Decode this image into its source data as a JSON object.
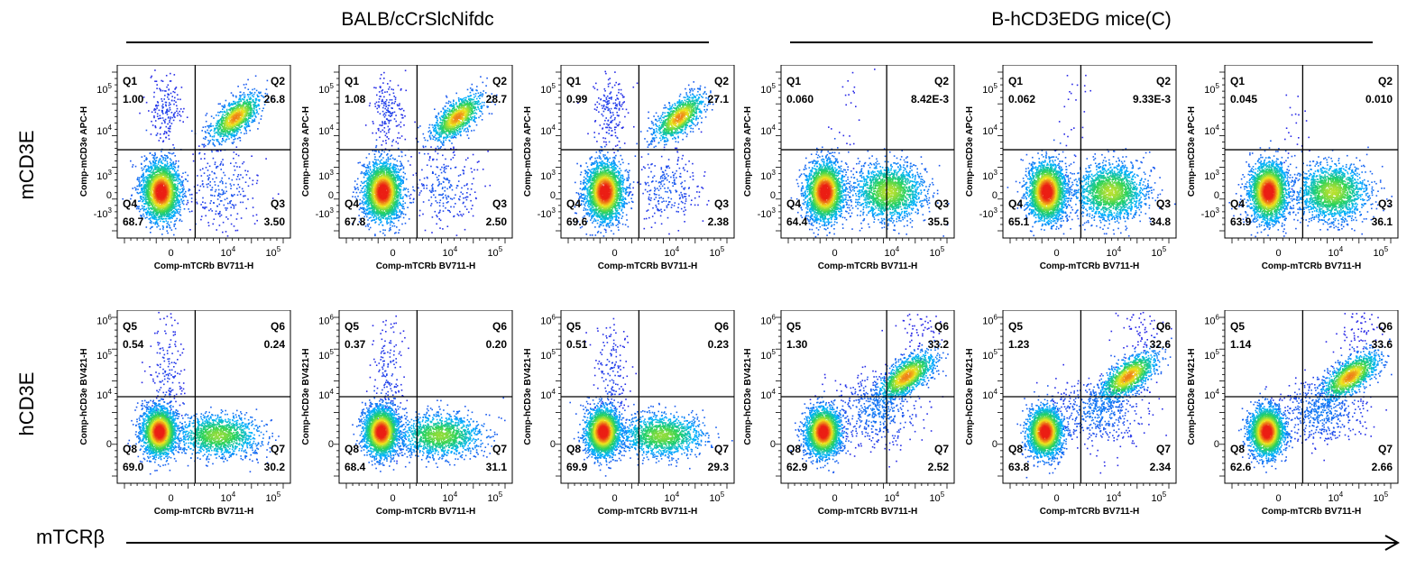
{
  "group_titles": [
    "BALB/cCrSlcNifdc",
    "B-hCD3EDG mice(C)"
  ],
  "row_labels": [
    "mCD3E",
    "hCD3E"
  ],
  "x_axis_label": "mTCRβ",
  "chart_data": [
    {
      "type": "scatter",
      "row": "mCD3E",
      "group": "BALB/cCrSlcNifdc",
      "xlabel": "Comp-mTCRb BV711-H",
      "ylabel": "Comp-mCD3e APC-H",
      "x_ticks": [
        "0",
        "10^4",
        "10^5"
      ],
      "y_ticks": [
        "-10^3",
        "0",
        "10^3",
        "10^4",
        "10^5"
      ],
      "quadrants": [
        {
          "name": "Q1",
          "value": "1.00"
        },
        {
          "name": "Q2",
          "value": "26.8"
        },
        {
          "name": "Q3",
          "value": "3.50"
        },
        {
          "name": "Q4",
          "value": "68.7"
        }
      ]
    },
    {
      "type": "scatter",
      "row": "mCD3E",
      "group": "BALB/cCrSlcNifdc",
      "xlabel": "Comp-mTCRb BV711-H",
      "ylabel": "Comp-mCD3e APC-H",
      "x_ticks": [
        "0",
        "10^4",
        "10^5"
      ],
      "y_ticks": [
        "-10^3",
        "0",
        "10^3",
        "10^4",
        "10^5"
      ],
      "quadrants": [
        {
          "name": "Q1",
          "value": "1.08"
        },
        {
          "name": "Q2",
          "value": "28.7"
        },
        {
          "name": "Q3",
          "value": "2.50"
        },
        {
          "name": "Q4",
          "value": "67.8"
        }
      ]
    },
    {
      "type": "scatter",
      "row": "mCD3E",
      "group": "BALB/cCrSlcNifdc",
      "xlabel": "Comp-mTCRb BV711-H",
      "ylabel": "Comp-mCD3e APC-H",
      "x_ticks": [
        "0",
        "10^4",
        "10^5"
      ],
      "y_ticks": [
        "-10^3",
        "0",
        "10^3",
        "10^4",
        "10^5"
      ],
      "quadrants": [
        {
          "name": "Q1",
          "value": "0.99"
        },
        {
          "name": "Q2",
          "value": "27.1"
        },
        {
          "name": "Q3",
          "value": "2.38"
        },
        {
          "name": "Q4",
          "value": "69.6"
        }
      ]
    },
    {
      "type": "scatter",
      "row": "mCD3E",
      "group": "B-hCD3EDG mice(C)",
      "xlabel": "Comp-mTCRb BV711-H",
      "ylabel": "Comp-mCD3e APC-H",
      "x_ticks": [
        "0",
        "10^4",
        "10^5"
      ],
      "y_ticks": [
        "-10^3",
        "0",
        "10^3",
        "10^4",
        "10^5"
      ],
      "quadrants": [
        {
          "name": "Q1",
          "value": "0.060"
        },
        {
          "name": "Q2",
          "value": "8.42E-3"
        },
        {
          "name": "Q3",
          "value": "35.5"
        },
        {
          "name": "Q4",
          "value": "64.4"
        }
      ]
    },
    {
      "type": "scatter",
      "row": "mCD3E",
      "group": "B-hCD3EDG mice(C)",
      "xlabel": "Comp-mTCRb BV711-H",
      "ylabel": "Comp-mCD3e APC-H",
      "x_ticks": [
        "0",
        "10^4",
        "10^5"
      ],
      "y_ticks": [
        "-10^3",
        "0",
        "10^3",
        "10^4",
        "10^5"
      ],
      "quadrants": [
        {
          "name": "Q1",
          "value": "0.062"
        },
        {
          "name": "Q2",
          "value": "9.33E-3"
        },
        {
          "name": "Q3",
          "value": "34.8"
        },
        {
          "name": "Q4",
          "value": "65.1"
        }
      ]
    },
    {
      "type": "scatter",
      "row": "mCD3E",
      "group": "B-hCD3EDG mice(C)",
      "xlabel": "Comp-mTCRb BV711-H",
      "ylabel": "Comp-mCD3e APC-H",
      "x_ticks": [
        "0",
        "10^4",
        "10^5"
      ],
      "y_ticks": [
        "-10^3",
        "0",
        "10^3",
        "10^4",
        "10^5"
      ],
      "quadrants": [
        {
          "name": "Q1",
          "value": "0.045"
        },
        {
          "name": "Q2",
          "value": "0.010"
        },
        {
          "name": "Q3",
          "value": "36.1"
        },
        {
          "name": "Q4",
          "value": "63.9"
        }
      ]
    },
    {
      "type": "scatter",
      "row": "hCD3E",
      "group": "BALB/cCrSlcNifdc",
      "xlabel": "Comp-mTCRb BV711-H",
      "ylabel": "Comp-hCD3e BV421-H",
      "x_ticks": [
        "0",
        "10^4",
        "10^5"
      ],
      "y_ticks": [
        "0",
        "10^4",
        "10^5",
        "10^6"
      ],
      "quadrants": [
        {
          "name": "Q5",
          "value": "0.54"
        },
        {
          "name": "Q6",
          "value": "0.24"
        },
        {
          "name": "Q7",
          "value": "30.2"
        },
        {
          "name": "Q8",
          "value": "69.0"
        }
      ]
    },
    {
      "type": "scatter",
      "row": "hCD3E",
      "group": "BALB/cCrSlcNifdc",
      "xlabel": "Comp-mTCRb BV711-H",
      "ylabel": "Comp-hCD3e BV421-H",
      "x_ticks": [
        "0",
        "10^4",
        "10^5"
      ],
      "y_ticks": [
        "0",
        "10^4",
        "10^5",
        "10^6"
      ],
      "quadrants": [
        {
          "name": "Q5",
          "value": "0.37"
        },
        {
          "name": "Q6",
          "value": "0.20"
        },
        {
          "name": "Q7",
          "value": "31.1"
        },
        {
          "name": "Q8",
          "value": "68.4"
        }
      ]
    },
    {
      "type": "scatter",
      "row": "hCD3E",
      "group": "BALB/cCrSlcNifdc",
      "xlabel": "Comp-mTCRb BV711-H",
      "ylabel": "Comp-hCD3e BV421-H",
      "x_ticks": [
        "0",
        "10^4",
        "10^5"
      ],
      "y_ticks": [
        "0",
        "10^4",
        "10^5",
        "10^6"
      ],
      "quadrants": [
        {
          "name": "Q5",
          "value": "0.51"
        },
        {
          "name": "Q6",
          "value": "0.23"
        },
        {
          "name": "Q7",
          "value": "29.3"
        },
        {
          "name": "Q8",
          "value": "69.9"
        }
      ]
    },
    {
      "type": "scatter",
      "row": "hCD3E",
      "group": "B-hCD3EDG mice(C)",
      "xlabel": "Comp-mTCRb BV711-H",
      "ylabel": "Comp-hCD3e BV421-H",
      "x_ticks": [
        "0",
        "10^4",
        "10^5"
      ],
      "y_ticks": [
        "0",
        "10^4",
        "10^5",
        "10^6"
      ],
      "quadrants": [
        {
          "name": "Q5",
          "value": "1.30"
        },
        {
          "name": "Q6",
          "value": "33.2"
        },
        {
          "name": "Q7",
          "value": "2.52"
        },
        {
          "name": "Q8",
          "value": "62.9"
        }
      ]
    },
    {
      "type": "scatter",
      "row": "hCD3E",
      "group": "B-hCD3EDG mice(C)",
      "xlabel": "Comp-mTCRb BV711-H",
      "ylabel": "Comp-hCD3e BV421-H",
      "x_ticks": [
        "0",
        "10^4",
        "10^5"
      ],
      "y_ticks": [
        "0",
        "10^4",
        "10^5",
        "10^6"
      ],
      "quadrants": [
        {
          "name": "Q5",
          "value": "1.23"
        },
        {
          "name": "Q6",
          "value": "32.6"
        },
        {
          "name": "Q7",
          "value": "2.34"
        },
        {
          "name": "Q8",
          "value": "63.8"
        }
      ]
    },
    {
      "type": "scatter",
      "row": "hCD3E",
      "group": "B-hCD3EDG mice(C)",
      "xlabel": "Comp-mTCRb BV711-H",
      "ylabel": "Comp-hCD3e BV421-H",
      "x_ticks": [
        "0",
        "10^4",
        "10^5"
      ],
      "y_ticks": [
        "0",
        "10^4",
        "10^5",
        "10^6"
      ],
      "quadrants": [
        {
          "name": "Q5",
          "value": "1.14"
        },
        {
          "name": "Q6",
          "value": "33.6"
        },
        {
          "name": "Q7",
          "value": "2.66"
        },
        {
          "name": "Q8",
          "value": "62.6"
        }
      ]
    }
  ]
}
